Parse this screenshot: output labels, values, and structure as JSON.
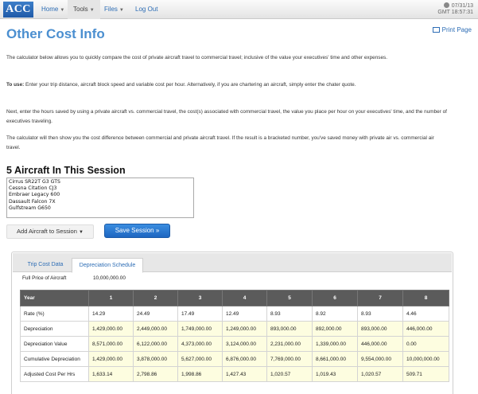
{
  "app": {
    "logo": "ACC"
  },
  "nav": {
    "home": "Home",
    "tools": "Tools",
    "files": "Files",
    "logout": "Log Out",
    "date": "07/31/13",
    "time": "GMT 18:57:31"
  },
  "page": {
    "title": "Other Cost Info",
    "print": "Print Page"
  },
  "intro": {
    "p1": "The calculator below allows you to quickly compare the cost of private aircraft travel to commercial travel; inclusive of the value your executives' time and other expenses.",
    "p2_lead": "To use:",
    "p2_text": " Enter your trip distance, aircraft block speed and variable cost per hour. Alternatively, if you are chartering an aircraft, simply enter the chater quote.",
    "p3": "Next, enter the hours saved by using a private aircraft vs. commercial travel, the cost(s) associated with commercial travel, the value you place per hour on your executives' time, and the number of executives traveling.",
    "p4": "The calculator will then show you the cost difference between commercial and private aircraft travel. If the result is a bracketed number, you've saved money with private air vs. commercial air travel."
  },
  "session": {
    "heading": "5 Aircraft In This Session",
    "aircraft": [
      "Cirrus SR22T G3 GTS",
      "Cessna Citation CJ3",
      "Embraer Legacy 600",
      "Dassault Falcon 7X",
      "Gulfstream G650"
    ],
    "add_button": "Add Aircraft to Session",
    "save_button": "Save Session »"
  },
  "tabs": {
    "trip": "Trip Cost Data",
    "depreciation": "Depreciation Schedule"
  },
  "schedule": {
    "full_price_label": "Full Price of Aircraft",
    "full_price_value": "10,000,000.00",
    "header": [
      "Year",
      "1",
      "2",
      "3",
      "4",
      "5",
      "6",
      "7",
      "8"
    ],
    "rows": [
      {
        "label": "Rate (%)",
        "values": [
          "14.29",
          "24.49",
          "17.49",
          "12.49",
          "8.93",
          "8.92",
          "8.93",
          "4.46"
        ]
      },
      {
        "label": "Depreciation",
        "values": [
          "1,429,000.00",
          "2,449,000.00",
          "1,749,000.00",
          "1,249,000.00",
          "893,000.00",
          "892,000.00",
          "893,000.00",
          "446,000.00"
        ]
      },
      {
        "label": "Depreciation Value",
        "values": [
          "8,571,000.00",
          "6,122,000.00",
          "4,373,000.00",
          "3,124,000.00",
          "2,231,000.00",
          "1,339,000.00",
          "446,000.00",
          "0.00"
        ]
      },
      {
        "label": "Cumulative Depreciation",
        "values": [
          "1,429,000.00",
          "3,878,000.00",
          "5,627,000.00",
          "6,876,000.00",
          "7,769,000.00",
          "8,661,000.00",
          "9,554,000.00",
          "10,000,000.00"
        ]
      },
      {
        "label": "Adjusted Cost Per Hrs",
        "values": [
          "1,633.14",
          "2,798.86",
          "1,998.86",
          "1,427.43",
          "1,020.57",
          "1,019.43",
          "1,020.57",
          "509.71"
        ]
      }
    ]
  }
}
